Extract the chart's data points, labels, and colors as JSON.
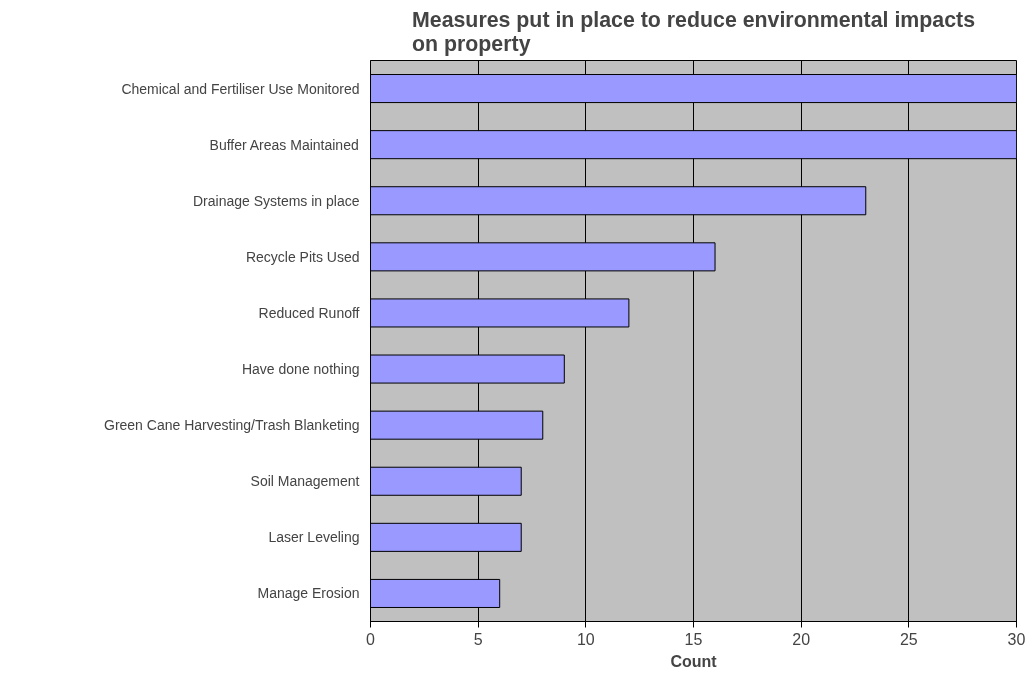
{
  "chart_data": {
    "type": "bar",
    "orientation": "horizontal",
    "title": "Measures put in place to reduce environmental impacts on property",
    "xlabel": "Count",
    "categories": [
      "Chemical and Fertiliser Use Monitored",
      "Buffer Areas Maintained",
      "Drainage Systems in place",
      "Recycle Pits Used",
      "Reduced Runoff",
      "Have done nothing",
      "Green Cane Harvesting/Trash Blanketing",
      "Soil Management",
      "Laser Leveling",
      "Manage Erosion"
    ],
    "values": [
      30,
      30,
      23,
      16,
      12,
      9,
      8,
      7,
      7,
      6
    ],
    "color": "#9999ff",
    "xlim": [
      0,
      30
    ],
    "xticks": [
      0,
      5,
      10,
      15,
      20,
      25,
      30
    ],
    "grid": "x"
  }
}
